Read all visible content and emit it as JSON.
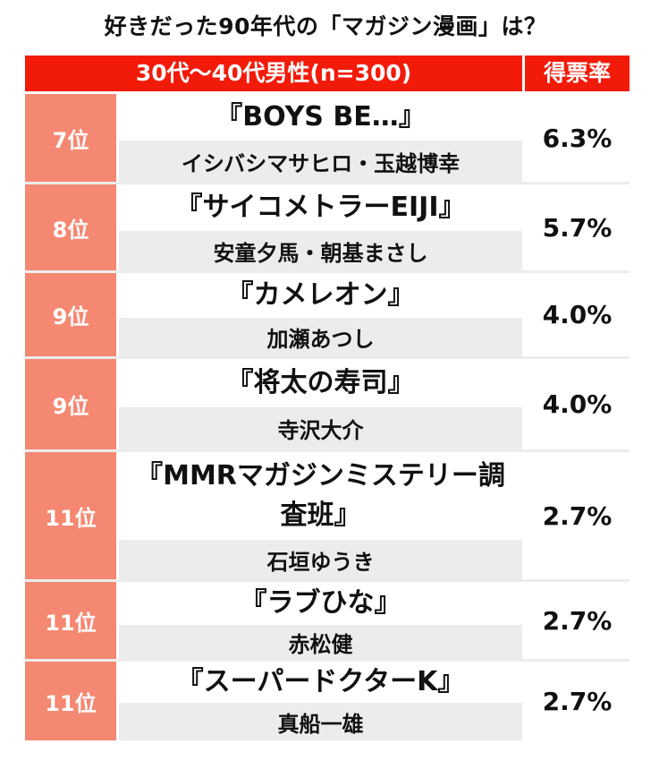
{
  "title": "好きだった90年代の「マガジン漫画」は？",
  "header": {
    "group": "30代〜40代男性(n=300)",
    "rate_label": "得票率"
  },
  "rows": [
    {
      "rank": "7位",
      "title": "『BOYS BE…』",
      "author": "イシバシマサヒロ・玉越博幸",
      "rate": "6.3%"
    },
    {
      "rank": "8位",
      "title": "『サイコメトラーEIJI』",
      "author": "安童夕馬・朝基まさし",
      "rate": "5.7%"
    },
    {
      "rank": "9位",
      "title": "『カメレオン』",
      "author": "加瀬あつし",
      "rate": "4.0%"
    },
    {
      "rank": "9位",
      "title": "『将太の寿司』",
      "author": "寺沢大介",
      "rate": "4.0%"
    },
    {
      "rank": "11位",
      "title": "『MMRマガジンミステリー調査班』",
      "author": "石垣ゆうき",
      "rate": "2.7%"
    },
    {
      "rank": "11位",
      "title": "『ラブひな』",
      "author": "赤松健",
      "rate": "2.7%"
    },
    {
      "rank": "11位",
      "title": "『スーパードクターK』",
      "author": "真船一雄",
      "rate": "2.7%"
    }
  ]
}
